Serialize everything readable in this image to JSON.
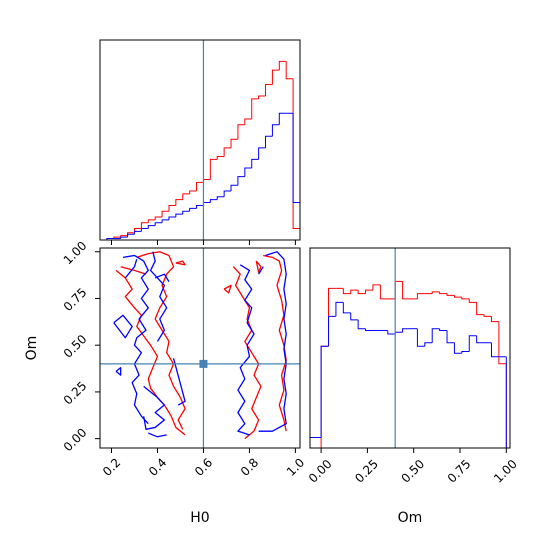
{
  "chart_data": {
    "type": "corner",
    "parameters": [
      "H0",
      "Om"
    ],
    "truths": {
      "H0": 0.6,
      "Om": 0.4
    },
    "truth_color": "#4682b4",
    "colors": {
      "red": "#ff0000",
      "blue": "#0000ff"
    },
    "panels": {
      "hist_h0": {
        "xlim": [
          0.15,
          1.02
        ],
        "red": {
          "edges": [
            0.15,
            0.18,
            0.21,
            0.24,
            0.27,
            0.3,
            0.33,
            0.36,
            0.39,
            0.42,
            0.45,
            0.48,
            0.51,
            0.54,
            0.57,
            0.6,
            0.63,
            0.66,
            0.69,
            0.72,
            0.75,
            0.78,
            0.81,
            0.84,
            0.87,
            0.9,
            0.93,
            0.96,
            0.99,
            1.02
          ],
          "counts": [
            0,
            1,
            2,
            3,
            5,
            8,
            12,
            14,
            16,
            20,
            24,
            28,
            32,
            34,
            40,
            42,
            56,
            58,
            64,
            70,
            80,
            84,
            98,
            100,
            108,
            118,
            124,
            112,
            8
          ]
        },
        "blue": {
          "edges": [
            0.15,
            0.18,
            0.21,
            0.24,
            0.27,
            0.3,
            0.33,
            0.36,
            0.39,
            0.42,
            0.45,
            0.48,
            0.51,
            0.54,
            0.57,
            0.6,
            0.63,
            0.66,
            0.69,
            0.72,
            0.75,
            0.78,
            0.81,
            0.84,
            0.87,
            0.9,
            0.93,
            0.96,
            0.99,
            1.02
          ],
          "counts": [
            0,
            1,
            1,
            2,
            4,
            6,
            8,
            10,
            12,
            14,
            16,
            18,
            20,
            22,
            24,
            26,
            28,
            30,
            34,
            38,
            44,
            50,
            56,
            64,
            72,
            80,
            88,
            88,
            26
          ]
        }
      },
      "hist_om": {
        "xlim": [
          -0.06,
          1.02
        ],
        "red": {
          "edges": [
            0.0,
            0.04,
            0.08,
            0.12,
            0.16,
            0.2,
            0.24,
            0.28,
            0.32,
            0.36,
            0.4,
            0.44,
            0.48,
            0.52,
            0.56,
            0.6,
            0.64,
            0.68,
            0.72,
            0.76,
            0.8,
            0.84,
            0.88,
            0.92,
            0.96,
            1.0
          ],
          "counts": [
            58,
            91,
            91,
            88,
            90,
            88,
            90,
            93,
            85,
            85,
            95,
            85,
            85,
            88,
            88,
            89,
            88,
            87,
            86,
            85,
            83,
            76,
            75,
            72,
            48
          ]
        },
        "blue": {
          "edges": [
            -0.06,
            0.0,
            0.04,
            0.08,
            0.12,
            0.16,
            0.2,
            0.24,
            0.28,
            0.32,
            0.36,
            0.4,
            0.44,
            0.48,
            0.52,
            0.56,
            0.6,
            0.64,
            0.68,
            0.72,
            0.76,
            0.8,
            0.84,
            0.88,
            0.92,
            0.96,
            1.0
          ],
          "counts": [
            6,
            58,
            75,
            83,
            77,
            73,
            68,
            67,
            67,
            67,
            65,
            66,
            68,
            68,
            58,
            60,
            68,
            67,
            60,
            54,
            55,
            64,
            60,
            60,
            52,
            52,
            38
          ]
        }
      },
      "contour": {
        "xlim": [
          0.15,
          1.02
        ],
        "ylim": [
          -0.05,
          1.02
        ],
        "red_contours": [
          [
            [
              0.22,
              0.9
            ],
            [
              0.26,
              0.86
            ],
            [
              0.29,
              0.8
            ],
            [
              0.26,
              0.76
            ],
            [
              0.3,
              0.7
            ],
            [
              0.33,
              0.66
            ],
            [
              0.31,
              0.6
            ],
            [
              0.34,
              0.55
            ],
            [
              0.37,
              0.5
            ],
            [
              0.4,
              0.44
            ],
            [
              0.38,
              0.38
            ],
            [
              0.36,
              0.32
            ],
            [
              0.37,
              0.27
            ],
            [
              0.4,
              0.22
            ],
            [
              0.43,
              0.18
            ],
            [
              0.46,
              0.12
            ],
            [
              0.48,
              0.06
            ],
            [
              0.52,
              0.02
            ]
          ],
          [
            [
              0.24,
              0.92
            ],
            [
              0.3,
              0.9
            ],
            [
              0.35,
              0.88
            ]
          ],
          [
            [
              0.31,
              0.97
            ],
            [
              0.36,
              0.99
            ],
            [
              0.41,
              1.0
            ],
            [
              0.45,
              0.98
            ],
            [
              0.47,
              0.92
            ],
            [
              0.44,
              0.88
            ],
            [
              0.42,
              0.82
            ],
            [
              0.44,
              0.76
            ],
            [
              0.41,
              0.7
            ],
            [
              0.39,
              0.64
            ],
            [
              0.42,
              0.58
            ],
            [
              0.45,
              0.52
            ],
            [
              0.44,
              0.46
            ],
            [
              0.47,
              0.4
            ],
            [
              0.45,
              0.34
            ],
            [
              0.47,
              0.28
            ],
            [
              0.5,
              0.22
            ],
            [
              0.52,
              0.16
            ],
            [
              0.49,
              0.1
            ],
            [
              0.51,
              0.05
            ]
          ],
          [
            [
              0.48,
              0.94
            ],
            [
              0.52,
              0.93
            ],
            [
              0.51,
              0.95
            ],
            [
              0.48,
              0.94
            ]
          ],
          [
            [
              0.73,
              0.92
            ],
            [
              0.76,
              0.88
            ],
            [
              0.74,
              0.82
            ],
            [
              0.77,
              0.76
            ],
            [
              0.8,
              0.7
            ],
            [
              0.79,
              0.64
            ],
            [
              0.81,
              0.58
            ],
            [
              0.78,
              0.52
            ],
            [
              0.81,
              0.46
            ],
            [
              0.84,
              0.4
            ],
            [
              0.82,
              0.34
            ],
            [
              0.85,
              0.28
            ],
            [
              0.83,
              0.22
            ],
            [
              0.81,
              0.16
            ],
            [
              0.84,
              0.1
            ],
            [
              0.82,
              0.04
            ],
            [
              0.78,
              0.0
            ]
          ],
          [
            [
              0.69,
              0.8
            ],
            [
              0.72,
              0.82
            ],
            [
              0.71,
              0.78
            ],
            [
              0.69,
              0.8
            ]
          ],
          [
            [
              0.86,
              0.98
            ],
            [
              0.9,
              0.97
            ],
            [
              0.93,
              0.95
            ],
            [
              0.94,
              0.9
            ],
            [
              0.92,
              0.82
            ],
            [
              0.94,
              0.74
            ],
            [
              0.95,
              0.66
            ],
            [
              0.93,
              0.58
            ],
            [
              0.95,
              0.5
            ],
            [
              0.96,
              0.42
            ],
            [
              0.94,
              0.34
            ],
            [
              0.95,
              0.26
            ],
            [
              0.93,
              0.18
            ],
            [
              0.95,
              0.1
            ],
            [
              0.96,
              0.04
            ]
          ],
          [
            [
              0.83,
              0.95
            ],
            [
              0.85,
              0.92
            ],
            [
              0.84,
              0.89
            ],
            [
              0.83,
              0.95
            ]
          ]
        ],
        "blue_contours": [
          [
            [
              0.25,
              0.97
            ],
            [
              0.3,
              0.98
            ],
            [
              0.34,
              0.95
            ],
            [
              0.36,
              0.9
            ],
            [
              0.33,
              0.86
            ],
            [
              0.36,
              0.8
            ],
            [
              0.33,
              0.75
            ],
            [
              0.36,
              0.7
            ],
            [
              0.32,
              0.64
            ],
            [
              0.35,
              0.58
            ],
            [
              0.31,
              0.54
            ],
            [
              0.3,
              0.5
            ],
            [
              0.33,
              0.46
            ],
            [
              0.3,
              0.4
            ],
            [
              0.32,
              0.34
            ],
            [
              0.29,
              0.3
            ],
            [
              0.31,
              0.24
            ],
            [
              0.3,
              0.18
            ],
            [
              0.33,
              0.12
            ],
            [
              0.36,
              0.08
            ]
          ],
          [
            [
              0.21,
              0.62
            ],
            [
              0.25,
              0.66
            ],
            [
              0.29,
              0.6
            ],
            [
              0.26,
              0.54
            ],
            [
              0.21,
              0.62
            ]
          ],
          [
            [
              0.22,
              0.36
            ],
            [
              0.24,
              0.38
            ],
            [
              0.24,
              0.34
            ],
            [
              0.22,
              0.36
            ]
          ],
          [
            [
              0.26,
              0.86
            ],
            [
              0.3,
              0.92
            ],
            [
              0.31,
              0.96
            ]
          ],
          [
            [
              0.38,
              1.0
            ],
            [
              0.39,
              0.95
            ],
            [
              0.37,
              0.9
            ],
            [
              0.4,
              0.86
            ],
            [
              0.43,
              0.82
            ],
            [
              0.41,
              0.76
            ],
            [
              0.44,
              0.7
            ],
            [
              0.41,
              0.64
            ],
            [
              0.43,
              0.58
            ],
            [
              0.4,
              0.52
            ]
          ],
          [
            [
              0.39,
              0.86
            ],
            [
              0.43,
              0.88
            ],
            [
              0.45,
              0.84
            ]
          ],
          [
            [
              0.34,
              0.28
            ],
            [
              0.4,
              0.22
            ],
            [
              0.43,
              0.18
            ],
            [
              0.39,
              0.14
            ],
            [
              0.43,
              0.1
            ],
            [
              0.39,
              0.06
            ],
            [
              0.35,
              0.05
            ],
            [
              0.34,
              0.12
            ]
          ],
          [
            [
              0.36,
              0.03
            ],
            [
              0.4,
              0.01
            ],
            [
              0.44,
              0.02
            ]
          ],
          [
            [
              0.47,
              0.43
            ],
            [
              0.52,
              0.2
            ],
            [
              0.49,
              0.18
            ]
          ],
          [
            [
              0.76,
              0.93
            ],
            [
              0.8,
              0.9
            ],
            [
              0.78,
              0.85
            ],
            [
              0.81,
              0.8
            ],
            [
              0.78,
              0.74
            ],
            [
              0.81,
              0.7
            ],
            [
              0.79,
              0.62
            ],
            [
              0.82,
              0.56
            ],
            [
              0.79,
              0.5
            ],
            [
              0.8,
              0.44
            ],
            [
              0.76,
              0.38
            ],
            [
              0.78,
              0.32
            ],
            [
              0.75,
              0.26
            ],
            [
              0.78,
              0.2
            ],
            [
              0.75,
              0.14
            ],
            [
              0.78,
              0.08
            ],
            [
              0.75,
              0.04
            ],
            [
              0.8,
              0.02
            ]
          ],
          [
            [
              0.84,
              0.88
            ],
            [
              0.86,
              0.92
            ]
          ],
          [
            [
              0.87,
              0.98
            ],
            [
              0.92,
              1.0
            ],
            [
              0.95,
              0.96
            ],
            [
              0.96,
              0.88
            ],
            [
              0.95,
              0.8
            ],
            [
              0.96,
              0.72
            ],
            [
              0.95,
              0.64
            ],
            [
              0.96,
              0.56
            ],
            [
              0.95,
              0.48
            ],
            [
              0.96,
              0.4
            ],
            [
              0.95,
              0.32
            ],
            [
              0.96,
              0.24
            ],
            [
              0.95,
              0.16
            ],
            [
              0.96,
              0.08
            ],
            [
              0.9,
              0.04
            ],
            [
              0.84,
              0.04
            ]
          ]
        ]
      }
    },
    "ticks": {
      "h0": [
        "0.2",
        "0.4",
        "0.6",
        "0.8",
        "1.0"
      ],
      "om": [
        "0.00",
        "0.25",
        "0.50",
        "0.75",
        "1.00"
      ],
      "om_x": [
        "0.00",
        "0.25",
        "0.50",
        "0.75",
        "1.00"
      ]
    },
    "xlabels": {
      "h0": "H0",
      "om": "Om"
    },
    "ylabel": "Om"
  }
}
